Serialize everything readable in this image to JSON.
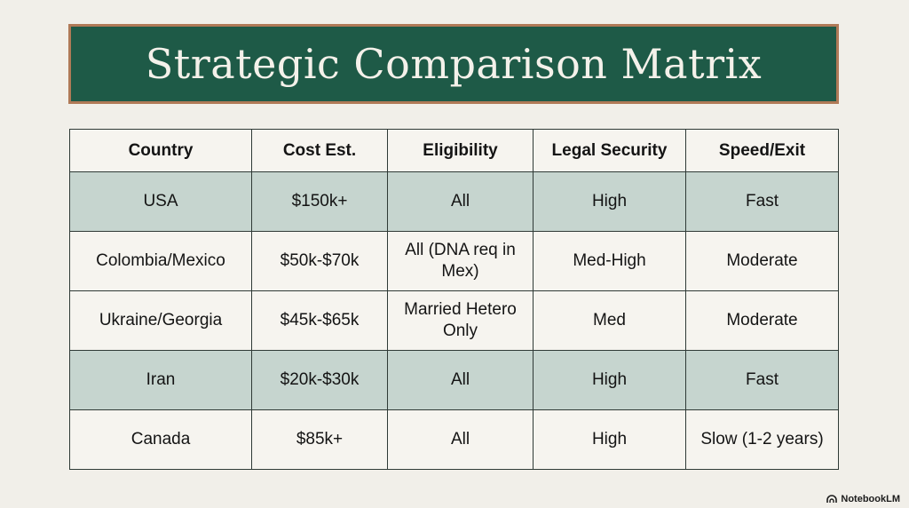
{
  "title": "Strategic Comparison Matrix",
  "table": {
    "headers": [
      "Country",
      "Cost Est.",
      "Eligibility",
      "Legal Security",
      "Speed/Exit"
    ],
    "rows": [
      [
        "USA",
        "$150k+",
        "All",
        "High",
        "Fast"
      ],
      [
        "Colombia/Mexico",
        "$50k-$70k",
        "All (DNA req in Mex)",
        "Med-High",
        "Moderate"
      ],
      [
        "Ukraine/Georgia",
        "$45k-$65k",
        "Married Hetero Only",
        "Med",
        "Moderate"
      ],
      [
        "Iran",
        "$20k-$30k",
        "All",
        "High",
        "Fast"
      ],
      [
        "Canada",
        "$85k+",
        "All",
        "High",
        "Slow (1-2 years)"
      ]
    ]
  },
  "brand": {
    "label": "NotebookLM",
    "icon": "notebooklm-logo-icon"
  },
  "colors": {
    "banner_bg": "#1e5a47",
    "banner_border": "#b07a57",
    "shaded_row": "#c6d5cf",
    "page_bg": "#f1efe9"
  }
}
